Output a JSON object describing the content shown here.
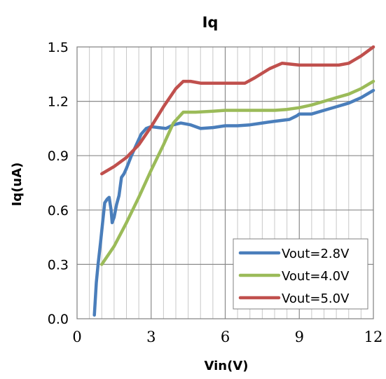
{
  "chart_data": {
    "type": "line",
    "title": "Iq",
    "xlabel": "Vin(V)",
    "ylabel": "Iq(uA)",
    "xlim": [
      0,
      12
    ],
    "ylim": [
      0,
      1.5
    ],
    "x_ticks": [
      "0",
      "3",
      "6",
      "9",
      "12"
    ],
    "y_ticks": [
      "0.0",
      "0.3",
      "0.6",
      "0.9",
      "1.2",
      "1.5"
    ],
    "minor_grid_x_step": 0.5,
    "major_grid_y_step": 0.3,
    "grid": true,
    "legend_position": "bottom-right",
    "series": [
      {
        "name": "Vout=2.8V",
        "color": "#4a7ebb",
        "points": [
          [
            0.7,
            0.02
          ],
          [
            0.78,
            0.2
          ],
          [
            0.85,
            0.3
          ],
          [
            0.95,
            0.42
          ],
          [
            1.05,
            0.55
          ],
          [
            1.12,
            0.64
          ],
          [
            1.22,
            0.66
          ],
          [
            1.3,
            0.67
          ],
          [
            1.38,
            0.6
          ],
          [
            1.42,
            0.53
          ],
          [
            1.5,
            0.56
          ],
          [
            1.6,
            0.63
          ],
          [
            1.7,
            0.68
          ],
          [
            1.8,
            0.78
          ],
          [
            1.9,
            0.8
          ],
          [
            2.0,
            0.83
          ],
          [
            2.2,
            0.9
          ],
          [
            2.4,
            0.96
          ],
          [
            2.6,
            1.02
          ],
          [
            2.8,
            1.05
          ],
          [
            3.0,
            1.06
          ],
          [
            3.3,
            1.055
          ],
          [
            3.6,
            1.05
          ],
          [
            3.9,
            1.07
          ],
          [
            4.2,
            1.08
          ],
          [
            4.6,
            1.07
          ],
          [
            5.0,
            1.05
          ],
          [
            5.5,
            1.055
          ],
          [
            6.0,
            1.065
          ],
          [
            6.5,
            1.065
          ],
          [
            7.0,
            1.07
          ],
          [
            7.5,
            1.08
          ],
          [
            8.0,
            1.09
          ],
          [
            8.6,
            1.1
          ],
          [
            8.9,
            1.12
          ],
          [
            9.0,
            1.13
          ],
          [
            9.5,
            1.13
          ],
          [
            10.0,
            1.15
          ],
          [
            10.5,
            1.17
          ],
          [
            11.0,
            1.19
          ],
          [
            11.5,
            1.22
          ],
          [
            12.0,
            1.26
          ]
        ]
      },
      {
        "name": "Vout=4.0V",
        "color": "#9bbb59",
        "points": [
          [
            1.0,
            0.3
          ],
          [
            1.5,
            0.4
          ],
          [
            2.0,
            0.53
          ],
          [
            2.5,
            0.67
          ],
          [
            3.0,
            0.82
          ],
          [
            3.5,
            0.96
          ],
          [
            3.9,
            1.08
          ],
          [
            4.3,
            1.14
          ],
          [
            4.8,
            1.14
          ],
          [
            5.5,
            1.145
          ],
          [
            6.0,
            1.15
          ],
          [
            7.0,
            1.15
          ],
          [
            8.0,
            1.15
          ],
          [
            8.5,
            1.155
          ],
          [
            9.0,
            1.165
          ],
          [
            9.5,
            1.18
          ],
          [
            10.0,
            1.2
          ],
          [
            10.5,
            1.22
          ],
          [
            11.0,
            1.24
          ],
          [
            11.5,
            1.27
          ],
          [
            12.0,
            1.31
          ]
        ]
      },
      {
        "name": "Vout=5.0V",
        "color": "#c0504d",
        "points": [
          [
            1.0,
            0.8
          ],
          [
            1.5,
            0.84
          ],
          [
            2.0,
            0.89
          ],
          [
            2.5,
            0.96
          ],
          [
            3.0,
            1.06
          ],
          [
            3.5,
            1.17
          ],
          [
            4.0,
            1.27
          ],
          [
            4.3,
            1.31
          ],
          [
            4.6,
            1.31
          ],
          [
            5.0,
            1.3
          ],
          [
            6.0,
            1.3
          ],
          [
            6.8,
            1.3
          ],
          [
            7.2,
            1.33
          ],
          [
            7.8,
            1.38
          ],
          [
            8.3,
            1.41
          ],
          [
            9.0,
            1.4
          ],
          [
            9.5,
            1.4
          ],
          [
            10.0,
            1.4
          ],
          [
            10.6,
            1.4
          ],
          [
            11.0,
            1.41
          ],
          [
            11.5,
            1.45
          ],
          [
            12.0,
            1.5
          ]
        ]
      }
    ]
  }
}
